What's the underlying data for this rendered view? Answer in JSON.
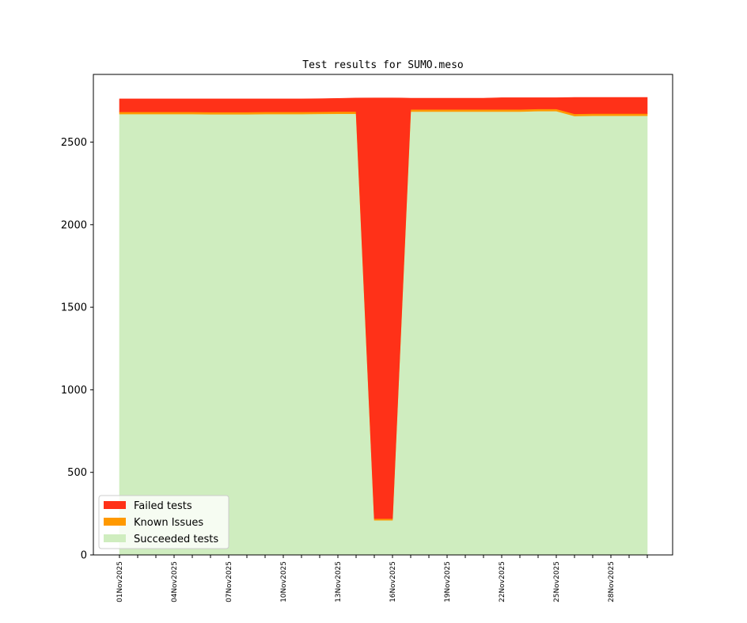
{
  "chart_data": {
    "type": "area",
    "title": "Test results for SUMO.meso",
    "xlabel": "",
    "ylabel": "",
    "ylim": [
      0,
      2910
    ],
    "yticks": [
      0,
      500,
      1000,
      1500,
      2000,
      2500
    ],
    "x": [
      "01Nov2025",
      "02Nov2025",
      "03Nov2025",
      "04Nov2025",
      "05Nov2025",
      "06Nov2025",
      "07Nov2025",
      "08Nov2025",
      "09Nov2025",
      "10Nov2025",
      "11Nov2025",
      "12Nov2025",
      "13Nov2025",
      "14Nov2025",
      "15Nov2025",
      "16Nov2025",
      "17Nov2025",
      "18Nov2025",
      "19Nov2025",
      "20Nov2025",
      "21Nov2025",
      "22Nov2025",
      "23Nov2025",
      "24Nov2025",
      "25Nov2025",
      "26Nov2025",
      "27Nov2025",
      "28Nov2025",
      "29Nov2025",
      "30Nov2025"
    ],
    "xtick_labels": [
      "01Nov2025",
      "04Nov2025",
      "07Nov2025",
      "10Nov2025",
      "13Nov2025",
      "16Nov2025",
      "19Nov2025",
      "22Nov2025",
      "25Nov2025",
      "28Nov2025"
    ],
    "series": [
      {
        "name": "Succeeded tests",
        "color": "#cfedbf",
        "values": [
          2670,
          2670,
          2670,
          2670,
          2670,
          2669,
          2669,
          2669,
          2670,
          2670,
          2670,
          2671,
          2672,
          2672,
          210,
          210,
          2685,
          2685,
          2685,
          2685,
          2685,
          2685,
          2685,
          2688,
          2688,
          2658,
          2660,
          2660,
          2660,
          2660
        ]
      },
      {
        "name": "Known Issues",
        "color": "#ff9900",
        "values": [
          13,
          13,
          13,
          13,
          13,
          13,
          13,
          13,
          13,
          13,
          13,
          13,
          13,
          13,
          10,
          10,
          13,
          13,
          13,
          13,
          13,
          13,
          13,
          13,
          13,
          13,
          13,
          13,
          13,
          13
        ]
      },
      {
        "name": "Failed tests",
        "color": "#ff3118",
        "values": [
          79,
          79,
          79,
          79,
          79,
          80,
          80,
          80,
          79,
          79,
          79,
          79,
          80,
          82,
          2548,
          2548,
          68,
          68,
          68,
          68,
          68,
          71,
          71,
          68,
          68,
          100,
          98,
          98,
          98,
          98
        ]
      }
    ],
    "legend": {
      "placement": "lower-left",
      "entries": [
        "Failed tests",
        "Known Issues",
        "Succeeded tests"
      ]
    }
  }
}
